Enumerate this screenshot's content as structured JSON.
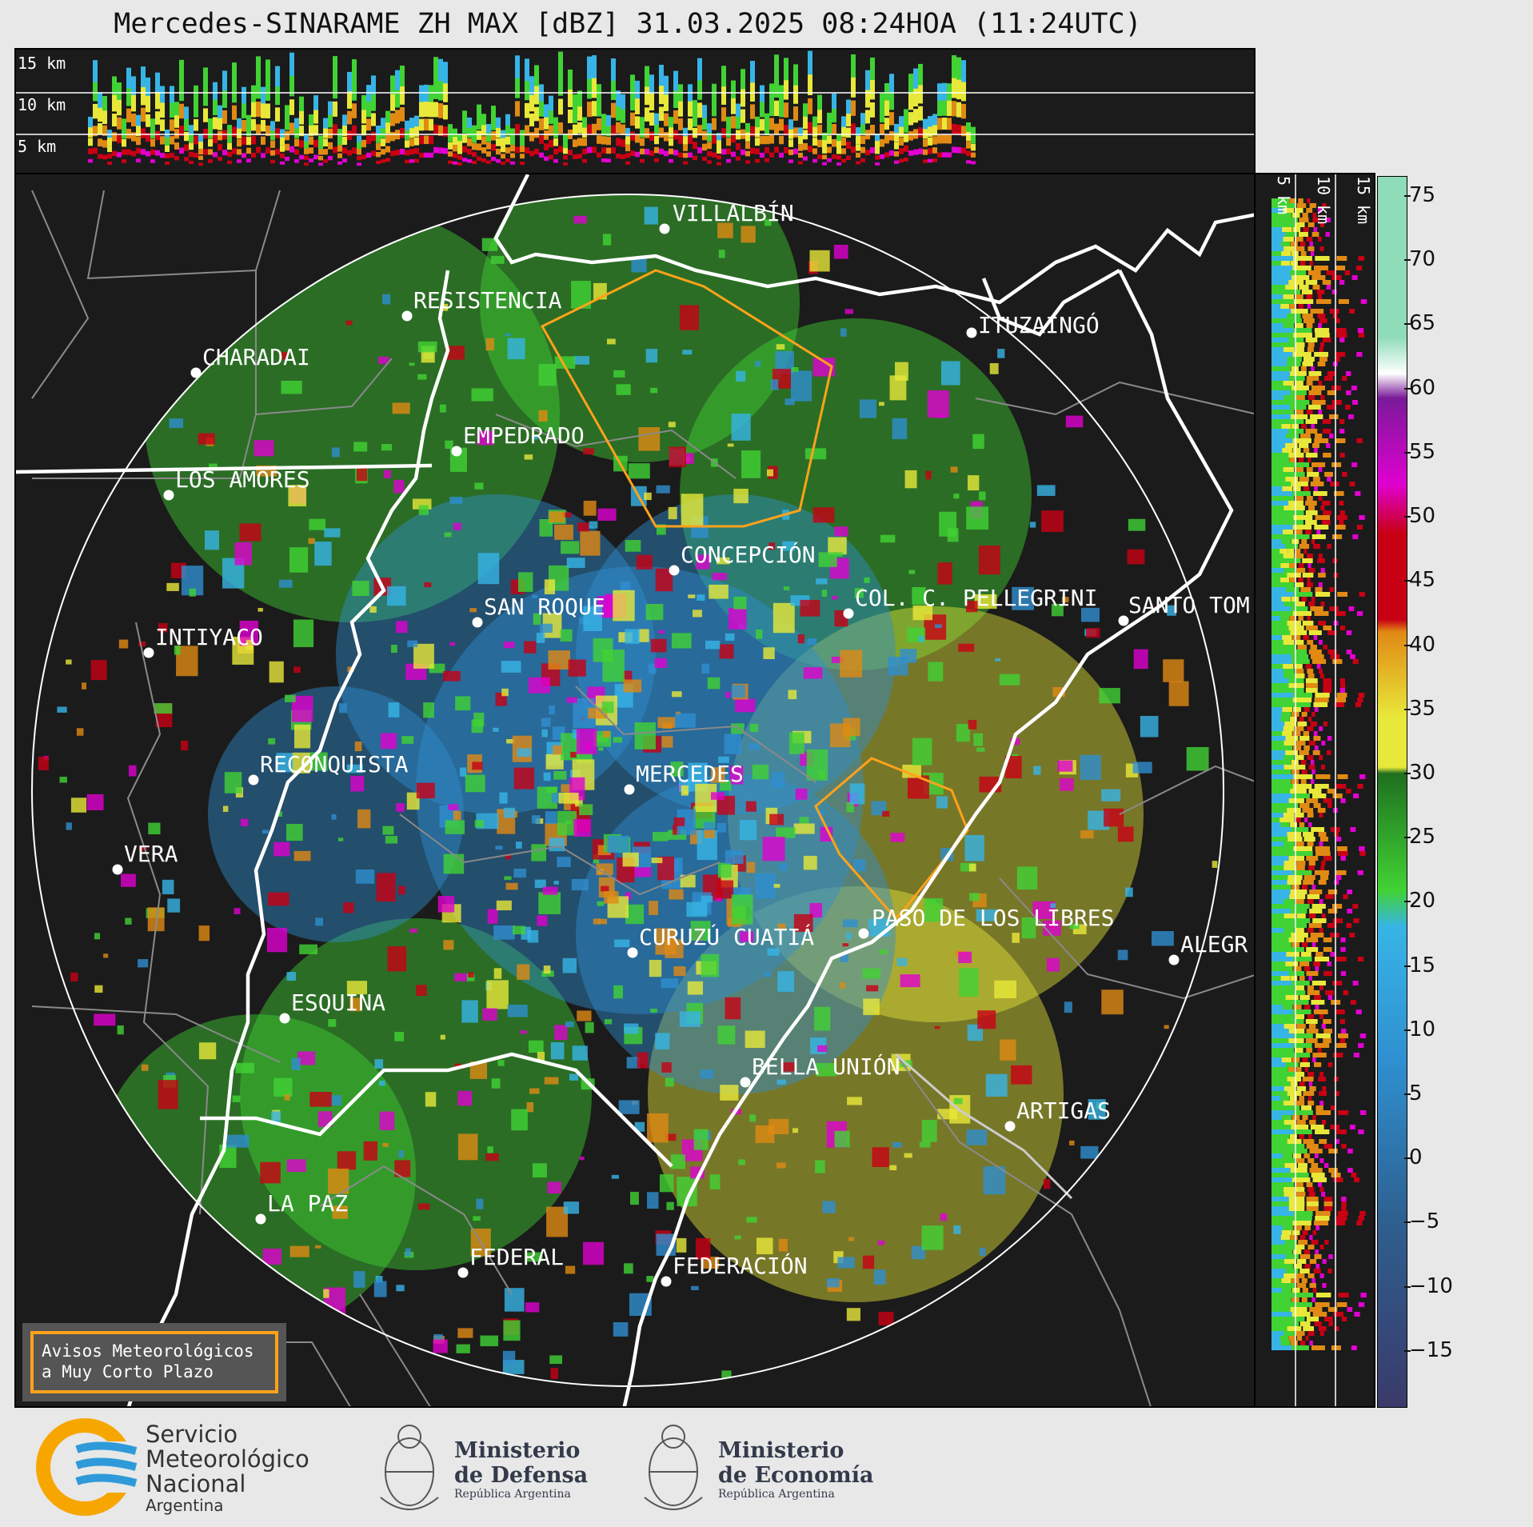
{
  "title": "Mercedes-SINARAME ZH MAX [dBZ] 31.03.2025 08:24HOA (11:24UTC)",
  "top_profile": {
    "labels": [
      "15 km",
      "10 km",
      "5 km"
    ]
  },
  "side_profile": {
    "labels": [
      "5 km",
      "10 km",
      "15 km"
    ]
  },
  "radar": "Mercedes",
  "cities": [
    {
      "name": "VILLALBÍN"
    },
    {
      "name": "RESISTENCIA"
    },
    {
      "name": "CHARADAI"
    },
    {
      "name": "ITUZAINGÓ"
    },
    {
      "name": "EMPEDRADO"
    },
    {
      "name": "LOS AMORES"
    },
    {
      "name": "CONCEPCIÓN"
    },
    {
      "name": "SAN ROQUE"
    },
    {
      "name": "COL. C. PELLEGRINI"
    },
    {
      "name": "SANTO TOM"
    },
    {
      "name": "INTIYACO"
    },
    {
      "name": "RECONQUISTA"
    },
    {
      "name": "MERCEDES"
    },
    {
      "name": "VERA"
    },
    {
      "name": "PASO DE LOS LIBRES"
    },
    {
      "name": "CURUZÚ CUATIÁ"
    },
    {
      "name": "ALEGR"
    },
    {
      "name": "ESQUINA"
    },
    {
      "name": "BELLA UNIÓN"
    },
    {
      "name": "ARTIGAS"
    },
    {
      "name": "LA PAZ"
    },
    {
      "name": "FEDERAL"
    },
    {
      "name": "FEDERACIÓN"
    }
  ],
  "colorbar": {
    "ticks": [
      "75",
      "70",
      "65",
      "60",
      "55",
      "50",
      "45",
      "40",
      "35",
      "30",
      "25",
      "20",
      "15",
      "10",
      "5",
      "0",
      "−5",
      "−10",
      "−15"
    ],
    "range": [
      -19.5,
      76.5
    ],
    "colors": {
      "dark": "#3a3a6a",
      "blue_dark": "#2e5f8f",
      "blue": "#2f8fd0",
      "cyan": "#37b4e6",
      "green_dark": "#1f6f1f",
      "green": "#41d234",
      "yellow": "#e8e83a",
      "orange": "#e08a14",
      "red": "#c80014",
      "magenta": "#e000d0",
      "purple": "#7a1a9a",
      "white": "#ffffff",
      "mint": "#8edcb8"
    }
  },
  "legend_box": {
    "line1": "Avisos Meteorológicos",
    "line2": "a Muy Corto Plazo"
  },
  "logos": {
    "smn_line1": "Servicio",
    "smn_line2": "Meteorológico",
    "smn_line3": "Nacional",
    "smn_line4": "Argentina",
    "defensa_line1": "Ministerio",
    "defensa_line2": "de Defensa",
    "defensa_line3": "República Argentina",
    "economia_line1": "Ministerio",
    "economia_line2": "de Economía",
    "economia_line3": "República Argentina"
  }
}
